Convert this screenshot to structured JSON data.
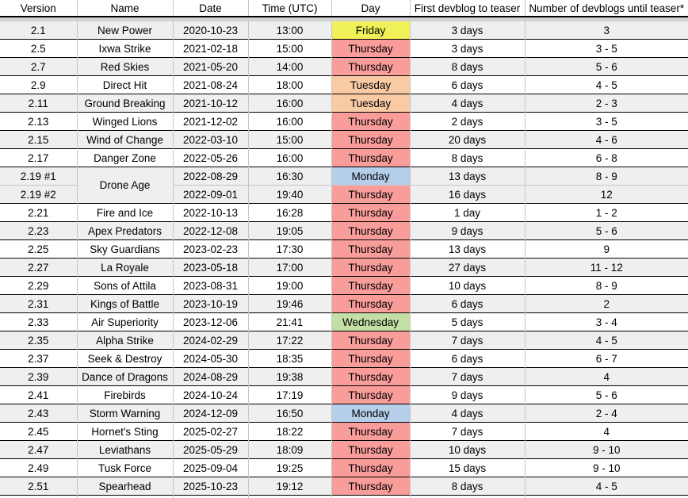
{
  "table": {
    "columns": [
      "Version",
      "Name",
      "Date",
      "Time (UTC)",
      "Day",
      "First devblog to teaser",
      "Number of devblogs until teaser*"
    ],
    "day_colors": {
      "Friday": "#F0F058",
      "Thursday": "#F99D9B",
      "Tuesday": "#F9CBA4",
      "Monday": "#B5CEEA",
      "Wednesday": "#C4DFA6"
    },
    "row_shade_colors": {
      "gray": "#EFEFEF",
      "white": "#FFFFFF"
    },
    "grid_colors": {
      "row_border": "#000000",
      "column_border": "#C6C6C6",
      "freeze_bar": "#D2D2D2"
    },
    "rows": [
      {
        "version": "2.1",
        "name": "New Power",
        "date": "2020-10-23",
        "time": "13:00",
        "day": "Friday",
        "first_devblog": "3 days",
        "num_devblogs": "3",
        "shade": "gray"
      },
      {
        "version": "2.5",
        "name": "Ixwa Strike",
        "date": "2021-02-18",
        "time": "15:00",
        "day": "Thursday",
        "first_devblog": "3 days",
        "num_devblogs": "3 - 5",
        "shade": "white"
      },
      {
        "version": "2.7",
        "name": "Red Skies",
        "date": "2021-05-20",
        "time": "14:00",
        "day": "Thursday",
        "first_devblog": "8 days",
        "num_devblogs": "5 - 6",
        "shade": "gray"
      },
      {
        "version": "2.9",
        "name": "Direct Hit",
        "date": "2021-08-24",
        "time": "18:00",
        "day": "Tuesday",
        "first_devblog": "6 days",
        "num_devblogs": "4 - 5",
        "shade": "white"
      },
      {
        "version": "2.11",
        "name": "Ground Breaking",
        "date": "2021-10-12",
        "time": "16:00",
        "day": "Tuesday",
        "first_devblog": "4 days",
        "num_devblogs": "2 - 3",
        "shade": "gray"
      },
      {
        "version": "2.13",
        "name": "Winged Lions",
        "date": "2021-12-02",
        "time": "16:00",
        "day": "Thursday",
        "first_devblog": "2 days",
        "num_devblogs": "3 - 5",
        "shade": "white"
      },
      {
        "version": "2.15",
        "name": "Wind of Change",
        "date": "2022-03-10",
        "time": "15:00",
        "day": "Thursday",
        "first_devblog": "20 days",
        "num_devblogs": "4 - 6",
        "shade": "gray"
      },
      {
        "version": "2.17",
        "name": "Danger Zone",
        "date": "2022-05-26",
        "time": "16:00",
        "day": "Thursday",
        "first_devblog": "8 days",
        "num_devblogs": "6 - 8",
        "shade": "white"
      },
      {
        "version": "2.19 #1",
        "name": "Drone Age",
        "date": "2022-08-29",
        "time": "16:30",
        "day": "Monday",
        "first_devblog": "13 days",
        "num_devblogs": "8 - 9",
        "shade": "gray",
        "name_rowspan": 2
      },
      {
        "version": "2.19 #2",
        "name": "Drone Age",
        "date": "2022-09-01",
        "time": "19:40",
        "day": "Thursday",
        "first_devblog": "16 days",
        "num_devblogs": "12",
        "shade": "gray",
        "name_merged": true,
        "light_divider": true
      },
      {
        "version": "2.21",
        "name": "Fire and Ice",
        "date": "2022-10-13",
        "time": "16:28",
        "day": "Thursday",
        "first_devblog": "1 day",
        "num_devblogs": "1 - 2",
        "shade": "white"
      },
      {
        "version": "2.23",
        "name": "Apex Predators",
        "date": "2022-12-08",
        "time": "19:05",
        "day": "Thursday",
        "first_devblog": "9 days",
        "num_devblogs": "5 - 6",
        "shade": "gray"
      },
      {
        "version": "2.25",
        "name": "Sky Guardians",
        "date": "2023-02-23",
        "time": "17:30",
        "day": "Thursday",
        "first_devblog": "13 days",
        "num_devblogs": "9",
        "shade": "white"
      },
      {
        "version": "2.27",
        "name": "La Royale",
        "date": "2023-05-18",
        "time": "17:00",
        "day": "Thursday",
        "first_devblog": "27 days",
        "num_devblogs": "11 - 12",
        "shade": "gray"
      },
      {
        "version": "2.29",
        "name": "Sons of Attila",
        "date": "2023-08-31",
        "time": "19:00",
        "day": "Thursday",
        "first_devblog": "10 days",
        "num_devblogs": "8 - 9",
        "shade": "white"
      },
      {
        "version": "2.31",
        "name": "Kings of Battle",
        "date": "2023-10-19",
        "time": "19:46",
        "day": "Thursday",
        "first_devblog": "6 days",
        "num_devblogs": "2",
        "shade": "gray"
      },
      {
        "version": "2.33",
        "name": "Air Superiority",
        "date": "2023-12-06",
        "time": "21:41",
        "day": "Wednesday",
        "first_devblog": "5 days",
        "num_devblogs": "3 - 4",
        "shade": "white"
      },
      {
        "version": "2.35",
        "name": "Alpha Strike",
        "date": "2024-02-29",
        "time": "17:22",
        "day": "Thursday",
        "first_devblog": "7 days",
        "num_devblogs": "4 - 5",
        "shade": "gray"
      },
      {
        "version": "2.37",
        "name": "Seek & Destroy",
        "date": "2024-05-30",
        "time": "18:35",
        "day": "Thursday",
        "first_devblog": "6 days",
        "num_devblogs": "6 - 7",
        "shade": "white"
      },
      {
        "version": "2.39",
        "name": "Dance of Dragons",
        "date": "2024-08-29",
        "time": "19:38",
        "day": "Thursday",
        "first_devblog": "7 days",
        "num_devblogs": "4",
        "shade": "gray"
      },
      {
        "version": "2.41",
        "name": "Firebirds",
        "date": "2024-10-24",
        "time": "17:19",
        "day": "Thursday",
        "first_devblog": "9 days",
        "num_devblogs": "5 - 6",
        "shade": "white"
      },
      {
        "version": "2.43",
        "name": "Storm Warning",
        "date": "2024-12-09",
        "time": "16:50",
        "day": "Monday",
        "first_devblog": "4 days",
        "num_devblogs": "2 - 4",
        "shade": "gray"
      },
      {
        "version": "2.45",
        "name": "Hornet's Sting",
        "date": "2025-02-27",
        "time": "18:22",
        "day": "Thursday",
        "first_devblog": "7 days",
        "num_devblogs": "4",
        "shade": "white"
      },
      {
        "version": "2.47",
        "name": "Leviathans",
        "date": "2025-05-29",
        "time": "18:09",
        "day": "Thursday",
        "first_devblog": "10 days",
        "num_devblogs": "9 - 10",
        "shade": "gray"
      },
      {
        "version": "2.49",
        "name": "Tusk Force",
        "date": "2025-09-04",
        "time": "19:25",
        "day": "Thursday",
        "first_devblog": "15 days",
        "num_devblogs": "9 - 10",
        "shade": "white"
      },
      {
        "version": "2.51",
        "name": "Spearhead",
        "date": "2025-10-23",
        "time": "19:12",
        "day": "Thursday",
        "first_devblog": "8 days",
        "num_devblogs": "4 - 5",
        "shade": "gray"
      }
    ]
  }
}
